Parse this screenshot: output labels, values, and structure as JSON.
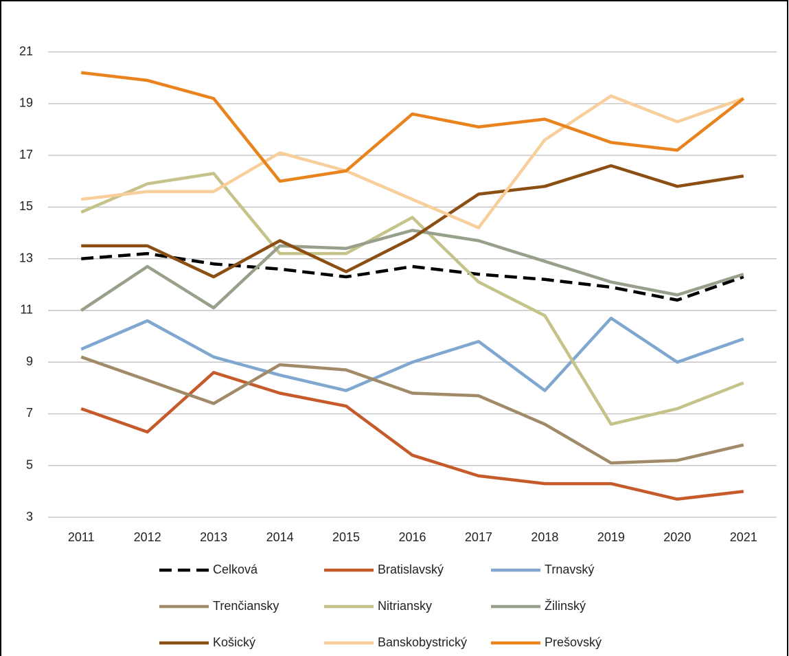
{
  "chart_data": {
    "type": "line",
    "categories": [
      "2011",
      "2012",
      "2013",
      "2014",
      "2015",
      "2016",
      "2017",
      "2018",
      "2019",
      "2020",
      "2021"
    ],
    "series": [
      {
        "name": "Celková",
        "color": "#000000",
        "dashed": true,
        "values": [
          13.0,
          13.2,
          12.8,
          12.6,
          12.3,
          12.7,
          12.4,
          12.2,
          11.9,
          11.4,
          12.3
        ]
      },
      {
        "name": "Bratislavský",
        "color": "#c55a2a",
        "values": [
          7.2,
          6.3,
          8.6,
          7.8,
          7.3,
          5.4,
          4.6,
          4.3,
          4.3,
          3.7,
          4.0
        ]
      },
      {
        "name": "Trnavský",
        "color": "#7fa7cf",
        "values": [
          9.5,
          10.6,
          9.2,
          8.5,
          7.9,
          9.0,
          9.8,
          7.9,
          10.7,
          9.0,
          9.9
        ]
      },
      {
        "name": "Trenčiansky",
        "color": "#a08a68",
        "values": [
          9.2,
          8.3,
          7.4,
          8.9,
          8.7,
          7.8,
          7.7,
          6.6,
          5.1,
          5.2,
          5.8
        ]
      },
      {
        "name": "Nitriansky",
        "color": "#c5c38a",
        "values": [
          14.8,
          15.9,
          16.3,
          13.2,
          13.2,
          14.6,
          12.1,
          10.8,
          6.6,
          7.2,
          8.2
        ]
      },
      {
        "name": "Žilinský",
        "color": "#97a08a",
        "values": [
          11.0,
          12.7,
          11.1,
          13.5,
          13.4,
          14.1,
          13.7,
          12.9,
          12.1,
          11.6,
          12.4
        ]
      },
      {
        "name": "Košický",
        "color": "#8b4f13",
        "values": [
          13.5,
          13.5,
          12.3,
          13.7,
          12.5,
          13.8,
          15.5,
          15.8,
          16.6,
          15.8,
          16.2
        ]
      },
      {
        "name": "Banskobystrický",
        "color": "#f8cf9b",
        "values": [
          15.3,
          15.6,
          15.6,
          17.1,
          16.4,
          15.3,
          14.2,
          17.6,
          19.3,
          18.3,
          19.2
        ]
      },
      {
        "name": "Prešovský",
        "color": "#e8831e",
        "values": [
          20.2,
          19.9,
          19.2,
          16.0,
          16.4,
          18.6,
          18.1,
          18.4,
          17.5,
          17.2,
          19.2
        ]
      }
    ],
    "ylim": [
      3,
      22
    ],
    "yticks": [
      3,
      5,
      7,
      9,
      11,
      13,
      15,
      17,
      19,
      21
    ],
    "grid": true,
    "legend": "bottom"
  }
}
